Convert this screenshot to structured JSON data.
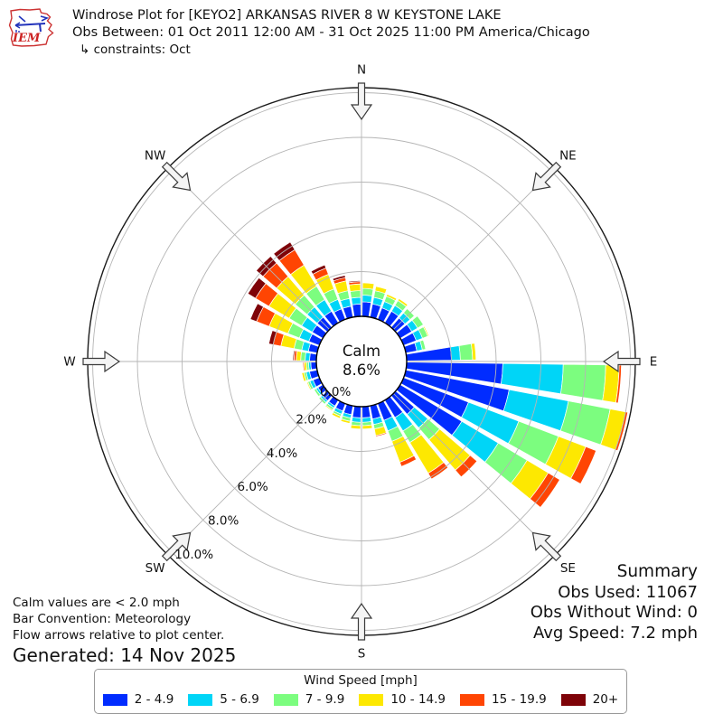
{
  "header": {
    "title": "Windrose Plot for [KEYO2] ARKANSAS RIVER 8 W KEYSTONE LAKE",
    "obs_between": "Obs Between: 01 Oct 2011 12:00 AM - 31 Oct 2025 11:00 PM America/Chicago",
    "constraints": "↳ constraints: Oct",
    "logo_text": "IEM"
  },
  "summary": {
    "title": "Summary",
    "obs_used": "Obs Used: 11067",
    "obs_without_wind": "Obs Without Wind: 0",
    "avg_speed": "Avg Speed: 7.2 mph"
  },
  "notes": {
    "calm_note": "Calm values are < 2.0 mph",
    "convention_note": "Bar Convention: Meteorology",
    "arrow_note": "Flow arrows relative to plot center.",
    "generated": "Generated: 14 Nov 2025"
  },
  "legend": {
    "title": "Wind Speed [mph]",
    "items": [
      {
        "label": "2 - 4.9",
        "color": "#012cff"
      },
      {
        "label": "5 - 6.9",
        "color": "#00d5f7"
      },
      {
        "label": "7 - 9.9",
        "color": "#7cfd7f"
      },
      {
        "label": "10 - 14.9",
        "color": "#fde801"
      },
      {
        "label": "15 - 19.9",
        "color": "#ff4503"
      },
      {
        "label": "20+",
        "color": "#7e0308"
      }
    ]
  },
  "chart_data": {
    "type": "windrose",
    "title": "Windrose Plot for [KEYO2] ARKANSAS RIVER 8 W KEYSTONE LAKE",
    "units": "mph",
    "bar_convention": "Meteorology",
    "calm": {
      "label": "Calm",
      "percent": 8.6,
      "percent_label": "8.6%",
      "threshold": "< 2.0 mph"
    },
    "radial_axis": {
      "tick_values": [
        0,
        2,
        4,
        6,
        8,
        10
      ],
      "tick_labels": [
        "0.0%",
        "2.0%",
        "4.0%",
        "6.0%",
        "8.0%",
        "10.0%"
      ],
      "rmax_percent": 10.25,
      "tick_label_bearing_deg": 221
    },
    "compass_points": [
      "N",
      "NE",
      "E",
      "SE",
      "S",
      "SW",
      "W",
      "NW"
    ],
    "nsectors": 36,
    "sector_width_deg": 10,
    "sector_start_deg": [
      0,
      10,
      20,
      30,
      40,
      50,
      60,
      70,
      80,
      90,
      100,
      110,
      120,
      130,
      140,
      150,
      160,
      170,
      180,
      190,
      200,
      210,
      220,
      230,
      240,
      250,
      260,
      270,
      280,
      290,
      300,
      310,
      320,
      330,
      340,
      350
    ],
    "speed_bins": [
      {
        "label": "2 - 4.9",
        "color": "#012cff"
      },
      {
        "label": "5 - 6.9",
        "color": "#00d5f7"
      },
      {
        "label": "7 - 9.9",
        "color": "#7cfd7f"
      },
      {
        "label": "10 - 14.9",
        "color": "#fde801"
      },
      {
        "label": "15 - 19.9",
        "color": "#ff4503"
      },
      {
        "label": "20+",
        "color": "#7e0308"
      }
    ],
    "series": [
      {
        "name": "2 - 4.9",
        "values": [
          0.65,
          0.6,
          0.55,
          0.6,
          0.55,
          0.6,
          0.6,
          0.5,
          2.0,
          4.3,
          4.7,
          3.1,
          3.2,
          1.1,
          0.9,
          0.8,
          0.6,
          0.5,
          0.5,
          0.4,
          0.35,
          0.3,
          0.3,
          0.25,
          0.3,
          0.35,
          0.25,
          0.3,
          0.4,
          0.5,
          0.55,
          0.6,
          0.6,
          0.5,
          0.5,
          0.55
        ]
      },
      {
        "name": "5 - 6.9",
        "values": [
          0.3,
          0.3,
          0.3,
          0.3,
          0.3,
          0.3,
          0.3,
          0.25,
          0.4,
          2.7,
          2.7,
          2.4,
          1.9,
          0.8,
          0.7,
          0.5,
          0.25,
          0.2,
          0.2,
          0.15,
          0.15,
          0.1,
          0.1,
          0.1,
          0.15,
          0.15,
          0.1,
          0.2,
          0.3,
          0.45,
          0.55,
          0.6,
          0.6,
          0.45,
          0.35,
          0.3
        ]
      },
      {
        "name": "7 - 9.9",
        "values": [
          0.3,
          0.3,
          0.25,
          0.25,
          0.25,
          0.3,
          0.25,
          0.15,
          0.55,
          1.9,
          1.9,
          1.9,
          1.5,
          0.7,
          0.6,
          0.5,
          0.2,
          0.15,
          0.15,
          0.15,
          0.1,
          0.1,
          0.1,
          0.1,
          0.1,
          0.1,
          0.1,
          0.2,
          0.35,
          0.55,
          0.65,
          0.7,
          0.7,
          0.5,
          0.35,
          0.3
        ]
      },
      {
        "name": "10 - 14.9",
        "values": [
          0.25,
          0.2,
          0.1,
          0.1,
          0.0,
          0.0,
          0.05,
          0.0,
          0.15,
          0.6,
          0.7,
          1.3,
          1.1,
          1.8,
          1.6,
          1.0,
          0.3,
          0.15,
          0.15,
          0.1,
          0.1,
          0.05,
          0.0,
          0.0,
          0.05,
          0.1,
          0.1,
          0.2,
          0.6,
          0.9,
          1.05,
          1.1,
          1.1,
          0.7,
          0.45,
          0.3
        ]
      },
      {
        "name": "15 - 19.9",
        "values": [
          0.0,
          0.0,
          0.0,
          0.0,
          0.0,
          0.0,
          0.0,
          0.0,
          0.0,
          0.1,
          0.1,
          0.5,
          0.6,
          0.4,
          0.3,
          0.2,
          0.05,
          0.0,
          0.0,
          0.0,
          0.0,
          0.0,
          0.0,
          0.0,
          0.0,
          0.0,
          0.05,
          0.1,
          0.35,
          0.6,
          0.7,
          0.8,
          0.8,
          0.3,
          0.15,
          0.1
        ]
      },
      {
        "name": "20+",
        "values": [
          0.0,
          0.0,
          0.0,
          0.0,
          0.0,
          0.0,
          0.0,
          0.0,
          0.0,
          0.0,
          0.0,
          0.0,
          0.0,
          0.0,
          0.0,
          0.0,
          0.0,
          0.0,
          0.0,
          0.0,
          0.0,
          0.0,
          0.0,
          0.0,
          0.0,
          0.0,
          0.0,
          0.05,
          0.2,
          0.3,
          0.4,
          0.4,
          0.4,
          0.15,
          0.1,
          0.05
        ]
      }
    ]
  }
}
